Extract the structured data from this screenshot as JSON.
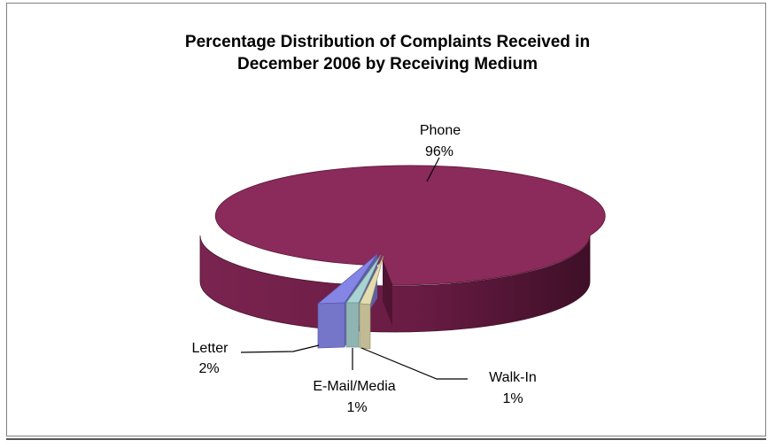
{
  "chart_data": {
    "type": "pie",
    "title_line1": "Percentage Distribution of Complaints Received in",
    "title_line2": "December 2006 by Receiving Medium",
    "slices": [
      {
        "name": "Phone",
        "value": 96,
        "label": "96%",
        "color": "#8b2b5b"
      },
      {
        "name": "Letter",
        "value": 2,
        "label": "2%",
        "color": "#8585e6"
      },
      {
        "name": "E-Mail/Media",
        "value": 1,
        "label": "1%",
        "color": "#a9d4d1"
      },
      {
        "name": "Walk-In",
        "value": 1,
        "label": "1%",
        "color": "#e3dcae"
      }
    ],
    "style": "3d-exploded"
  }
}
